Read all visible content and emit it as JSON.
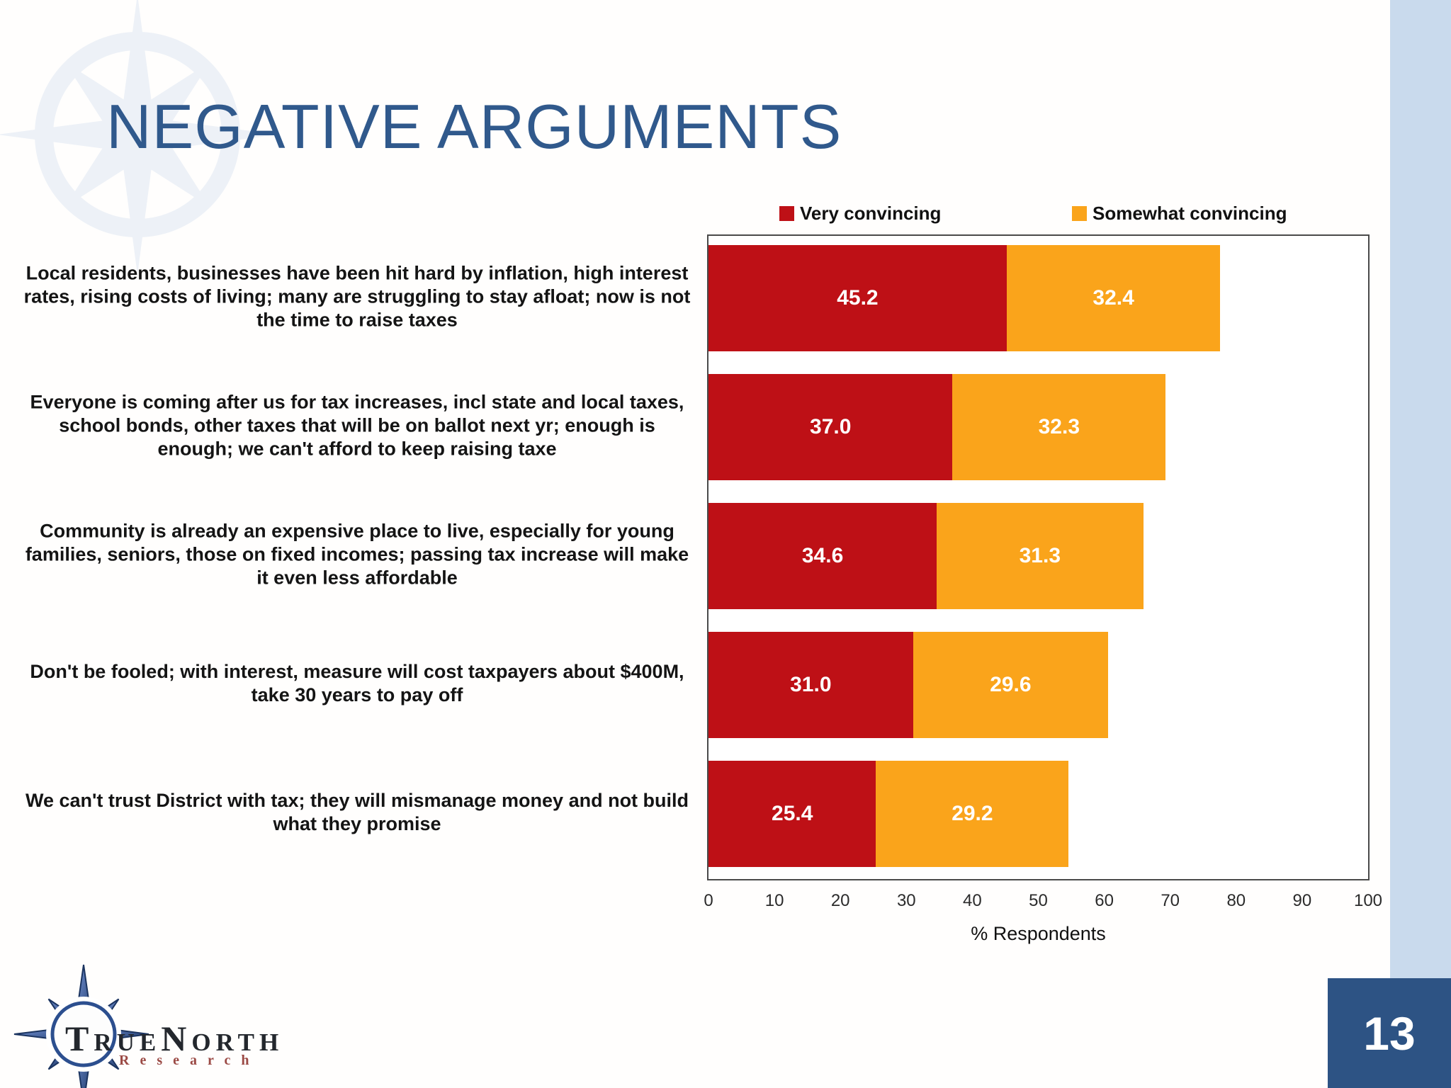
{
  "slide": {
    "title": "NEGATIVE ARGUMENTS",
    "page_number": "13",
    "logo": {
      "name": "TrueNorth Research logo",
      "line1": "TrueNorth",
      "line2": "Research"
    },
    "accent_band_color": "#C9DAED",
    "page_box_color": "#2D5384",
    "title_color": "#30598C"
  },
  "chart_data": {
    "type": "bar",
    "orientation": "horizontal",
    "stacked": true,
    "title": "",
    "xlabel": "% Respondents",
    "ylabel": "",
    "xlim": [
      0,
      100
    ],
    "xticks": [
      0,
      10,
      20,
      30,
      40,
      50,
      60,
      70,
      80,
      90,
      100
    ],
    "grid": false,
    "legend_position": "top",
    "categories": [
      "Local residents, businesses have been hit hard by inflation, high interest rates, rising costs of living; many are struggling to stay afloat; now is not the time to raise taxes",
      "Everyone is coming after us for tax increases,  incl state and local taxes, school bonds, other taxes that will be on ballot next yr; enough is enough; we can't afford to keep raising taxe",
      "Community is already an expensive place to live, especially for young families, seniors, those on fixed incomes; passing tax increase will make it even less affordable",
      "Don't be fooled; with interest, measure will cost taxpayers about $400M, take 30 years to pay off",
      "We can't trust District with tax; they will mismanage money and not build what they promise"
    ],
    "series": [
      {
        "name": "Very convincing",
        "color": "#BE1016",
        "values": [
          45.2,
          37.0,
          34.6,
          31.0,
          25.4
        ]
      },
      {
        "name": "Somewhat convincing",
        "color": "#FAA41B",
        "values": [
          32.4,
          32.3,
          31.3,
          29.6,
          29.2
        ]
      }
    ]
  }
}
